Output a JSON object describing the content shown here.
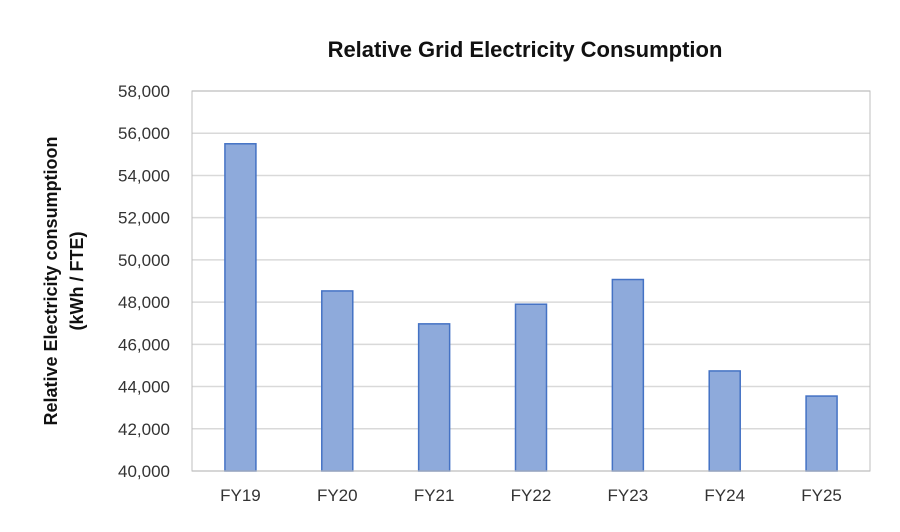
{
  "chart_data": {
    "type": "bar",
    "title": "Relative Grid Electricity Consumption",
    "ylabel_line1": "Relative Electricity consumptioon",
    "ylabel_line2": "(kWh / FTE)",
    "xlabel": "",
    "categories": [
      "FY19",
      "FY20",
      "FY21",
      "FY22",
      "FY23",
      "FY24",
      "FY25"
    ],
    "values": [
      55500,
      48530,
      46970,
      47900,
      49070,
      44740,
      43550
    ],
    "ylim": [
      40000,
      58000
    ],
    "yticks": [
      40000,
      42000,
      44000,
      46000,
      48000,
      50000,
      52000,
      54000,
      56000,
      58000
    ],
    "ytick_labels": [
      "40,000",
      "42,000",
      "44,000",
      "46,000",
      "48,000",
      "50,000",
      "52,000",
      "54,000",
      "56,000",
      "58,000"
    ],
    "grid": true,
    "legend": "none",
    "colors": {
      "bar_fill": "#8eaadb",
      "bar_stroke": "#4472c4",
      "grid": "#d9d9d9"
    }
  }
}
